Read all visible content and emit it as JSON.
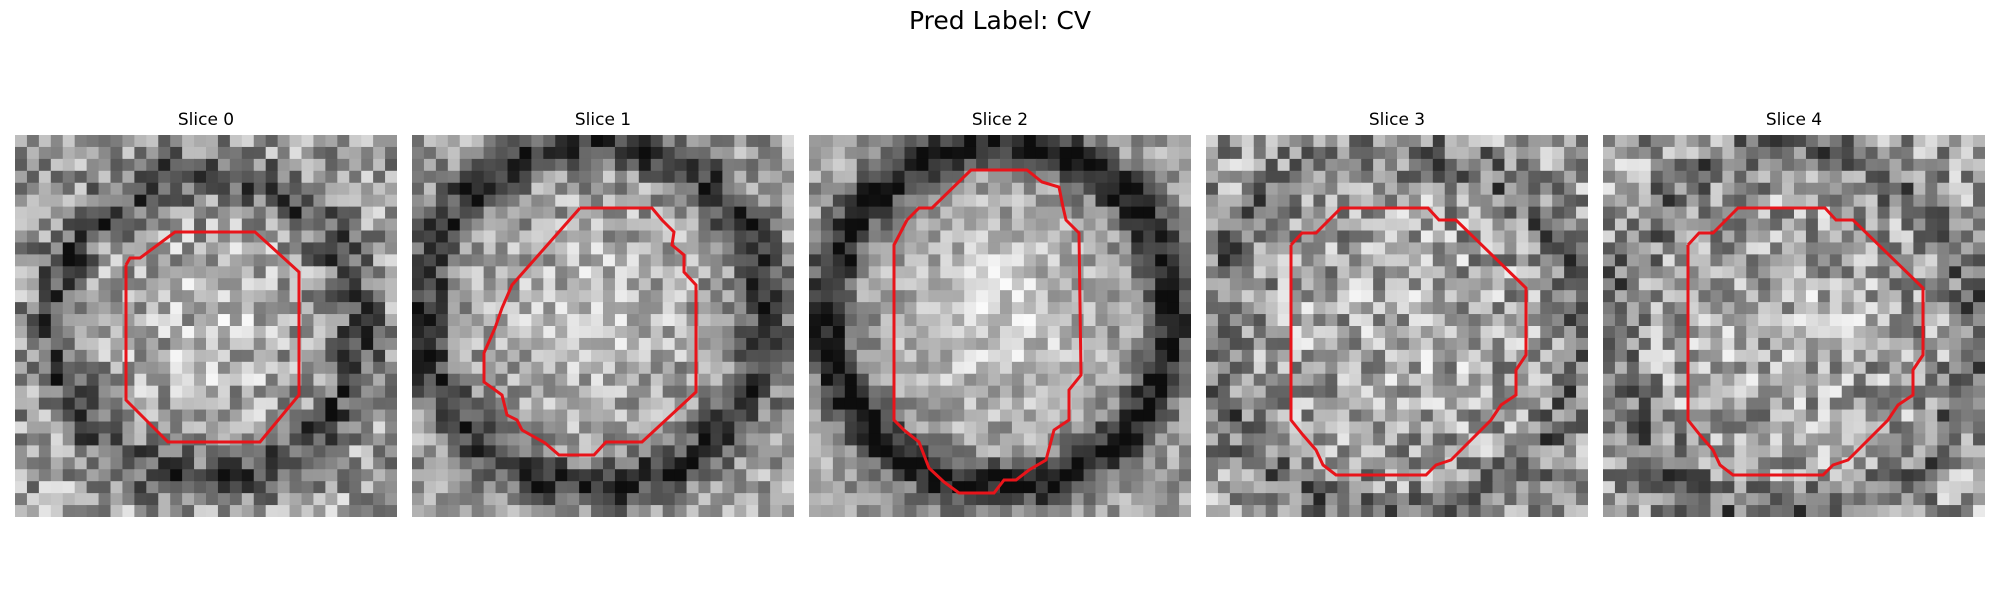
{
  "figure": {
    "title": "Pred Label: CV"
  },
  "slices": [
    {
      "title": "Slice 0"
    },
    {
      "title": "Slice 1"
    },
    {
      "title": "Slice 2"
    },
    {
      "title": "Slice 3"
    },
    {
      "title": "Slice 4"
    }
  ],
  "colors": {
    "contour": "#e8141a",
    "background": "#ffffff"
  },
  "image": {
    "colormap": "gray",
    "grid_size": 32
  }
}
